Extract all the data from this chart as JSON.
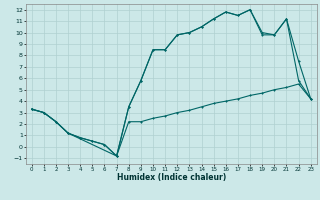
{
  "xlabel": "Humidex (Indice chaleur)",
  "background_color": "#cce8e8",
  "grid_color": "#b0d0d0",
  "line_color": "#006666",
  "xlim": [
    -0.5,
    23.5
  ],
  "ylim": [
    -1.5,
    12.5
  ],
  "xticks": [
    0,
    1,
    2,
    3,
    4,
    5,
    6,
    7,
    8,
    9,
    10,
    11,
    12,
    13,
    14,
    15,
    16,
    17,
    18,
    19,
    20,
    21,
    22,
    23
  ],
  "yticks": [
    -1,
    0,
    1,
    2,
    3,
    4,
    5,
    6,
    7,
    8,
    9,
    10,
    11,
    12
  ],
  "line1_x": [
    0,
    1,
    2,
    3,
    4,
    5,
    6,
    7,
    8,
    9,
    10,
    11,
    12,
    13,
    14,
    15,
    16,
    17,
    18,
    19,
    20,
    21,
    22,
    23
  ],
  "line1_y": [
    3.3,
    3.0,
    2.2,
    1.2,
    0.8,
    0.5,
    0.2,
    -0.8,
    2.2,
    2.2,
    2.5,
    2.7,
    3.0,
    3.2,
    3.5,
    3.8,
    4.0,
    4.2,
    4.5,
    4.7,
    5.0,
    5.2,
    5.5,
    4.2
  ],
  "line2_x": [
    0,
    1,
    2,
    3,
    4,
    5,
    6,
    7,
    8,
    9,
    10,
    11,
    12,
    13,
    14,
    15,
    16,
    17,
    18,
    19,
    20,
    21,
    22,
    23
  ],
  "line2_y": [
    3.3,
    3.0,
    2.2,
    1.2,
    0.8,
    0.5,
    0.2,
    -0.8,
    3.5,
    5.8,
    8.5,
    8.5,
    9.8,
    10.0,
    10.5,
    11.2,
    11.8,
    11.5,
    12.0,
    9.8,
    9.8,
    11.2,
    5.8,
    4.2
  ],
  "line3_x": [
    0,
    1,
    2,
    3,
    7,
    8,
    9,
    10,
    11,
    12,
    13,
    14,
    15,
    16,
    17,
    18,
    19,
    20,
    21,
    22,
    23
  ],
  "line3_y": [
    3.3,
    3.0,
    2.2,
    1.2,
    -0.8,
    3.5,
    5.8,
    8.5,
    8.5,
    9.8,
    10.0,
    10.5,
    11.2,
    11.8,
    11.5,
    12.0,
    10.0,
    9.8,
    11.2,
    7.5,
    4.2
  ]
}
